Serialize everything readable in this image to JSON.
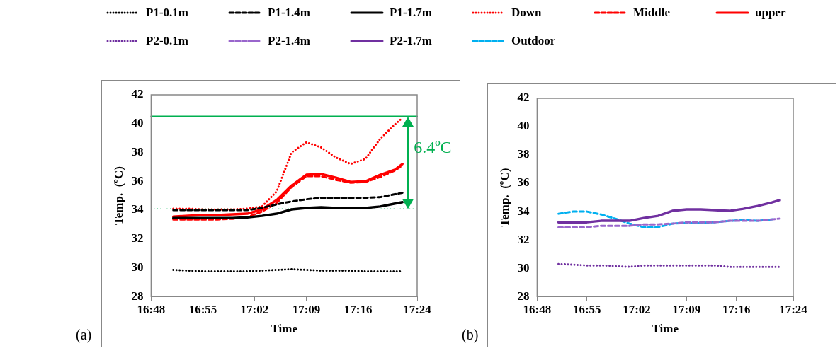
{
  "chart_data": [
    {
      "type": "line",
      "xlabel": "Time",
      "ylabel": "Temp.  (ºC)",
      "legend": "top",
      "x": [
        16.85,
        16.8833,
        16.9167,
        16.95,
        16.9833,
        17.0167,
        17.05,
        17.0833,
        17.1167,
        17.15,
        17.1833,
        17.2167,
        17.25,
        17.2833,
        17.3167,
        17.35,
        17.3667
      ],
      "series": [
        {
          "name": "P1-0.1m",
          "color": "#000000",
          "line_style": "dotted",
          "values": [
            29.85,
            29.8,
            29.75,
            29.75,
            29.75,
            29.75,
            29.8,
            29.85,
            29.9,
            29.85,
            29.8,
            29.8,
            29.8,
            29.75,
            29.75,
            29.75,
            29.75
          ]
        },
        {
          "name": "P1-1.4m",
          "color": "#000000",
          "line_style": "dashed",
          "values": [
            34.0,
            34.0,
            34.0,
            34.0,
            34.0,
            34.0,
            34.15,
            34.4,
            34.6,
            34.75,
            34.85,
            34.85,
            34.85,
            34.85,
            34.9,
            35.1,
            35.2
          ]
        },
        {
          "name": "P1-1.7m",
          "color": "#000000",
          "line_style": "solid",
          "values": [
            33.45,
            33.45,
            33.45,
            33.45,
            33.45,
            33.5,
            33.6,
            33.75,
            34.05,
            34.15,
            34.2,
            34.15,
            34.15,
            34.15,
            34.25,
            34.45,
            34.55
          ]
        },
        {
          "name": "Down",
          "color": "#ff0000",
          "line_style": "dotted",
          "values": [
            34.1,
            34.1,
            34.05,
            34.05,
            34.05,
            34.1,
            34.25,
            35.3,
            38.0,
            38.7,
            38.35,
            37.65,
            37.2,
            37.55,
            38.95,
            39.95,
            40.4
          ]
        },
        {
          "name": "Middle",
          "color": "#ff0000",
          "line_style": "dashed",
          "values": [
            33.35,
            33.35,
            33.35,
            33.35,
            33.4,
            33.5,
            33.9,
            34.5,
            35.6,
            36.35,
            36.35,
            36.1,
            35.9,
            35.95,
            36.3,
            36.75,
            37.1
          ]
        },
        {
          "name": "upper",
          "color": "#ff0000",
          "line_style": "solid",
          "values": [
            33.55,
            33.6,
            33.65,
            33.65,
            33.7,
            33.75,
            34.05,
            34.7,
            35.7,
            36.45,
            36.5,
            36.25,
            35.95,
            36.0,
            36.45,
            36.8,
            37.2
          ]
        }
      ],
      "xlim": [
        16.8,
        17.4
      ],
      "xticks": [
        {
          "value": 16.8,
          "label": "16:48"
        },
        {
          "value": 16.9167,
          "label": "16:55"
        },
        {
          "value": 17.0333,
          "label": "17:02"
        },
        {
          "value": 17.15,
          "label": "17:09"
        },
        {
          "value": 17.2667,
          "label": "17:16"
        },
        {
          "value": 17.4,
          "label": "17:24"
        }
      ],
      "ylim": [
        28,
        42
      ],
      "yticks": [
        28,
        30,
        32,
        34,
        36,
        38,
        40,
        42
      ],
      "grid": false,
      "ref_lines": [
        {
          "axis": "y",
          "value": 34.1,
          "color": "#00b050",
          "line_style": "dotted"
        },
        {
          "axis": "y",
          "value": 40.5,
          "color": "#00b050",
          "line_style": "solid"
        }
      ],
      "annotations": [
        "6.4ºC",
        "(a)"
      ]
    },
    {
      "type": "line",
      "xlabel": "Time",
      "ylabel": "Temp.  (ºC)",
      "legend": "top",
      "x": [
        16.85,
        16.8833,
        16.9167,
        16.95,
        16.9833,
        17.0167,
        17.05,
        17.0833,
        17.1167,
        17.15,
        17.1833,
        17.2167,
        17.25,
        17.2833,
        17.3167,
        17.35,
        17.3667
      ],
      "series": [
        {
          "name": "P2-0.1m",
          "color": "#7030a0",
          "line_style": "dotted",
          "values": [
            30.3,
            30.25,
            30.2,
            30.2,
            30.15,
            30.1,
            30.2,
            30.2,
            30.2,
            30.2,
            30.2,
            30.2,
            30.1,
            30.1,
            30.1,
            30.1,
            30.1
          ]
        },
        {
          "name": "P2-1.4m",
          "color": "#9966cc",
          "line_style": "dashed",
          "values": [
            32.9,
            32.9,
            32.9,
            33.0,
            33.0,
            33.0,
            33.1,
            33.1,
            33.15,
            33.25,
            33.25,
            33.25,
            33.35,
            33.35,
            33.35,
            33.45,
            33.5
          ]
        },
        {
          "name": "P2-1.7m",
          "color": "#7030a0",
          "line_style": "solid",
          "values": [
            33.25,
            33.25,
            33.25,
            33.35,
            33.35,
            33.35,
            33.55,
            33.7,
            34.05,
            34.15,
            34.15,
            34.1,
            34.05,
            34.2,
            34.4,
            34.65,
            34.8
          ]
        },
        {
          "name": "Outdoor",
          "color": "#00b0f0",
          "line_style": "dashed",
          "values": [
            33.85,
            34.0,
            34.0,
            33.8,
            33.5,
            33.15,
            32.9,
            32.9,
            33.15,
            33.2,
            33.2,
            33.25,
            33.35,
            33.4,
            33.35,
            33.45,
            null
          ]
        }
      ],
      "xlim": [
        16.8,
        17.4
      ],
      "xticks": [
        {
          "value": 16.8,
          "label": "16:48"
        },
        {
          "value": 16.9167,
          "label": "16:55"
        },
        {
          "value": 17.0333,
          "label": "17:02"
        },
        {
          "value": 17.15,
          "label": "17:09"
        },
        {
          "value": 17.2667,
          "label": "17:16"
        },
        {
          "value": 17.4,
          "label": "17:24"
        }
      ],
      "ylim": [
        28,
        42
      ],
      "yticks": [
        28,
        30,
        32,
        34,
        36,
        38,
        40,
        42
      ],
      "grid": false,
      "annotations": [
        "(b)"
      ]
    }
  ]
}
